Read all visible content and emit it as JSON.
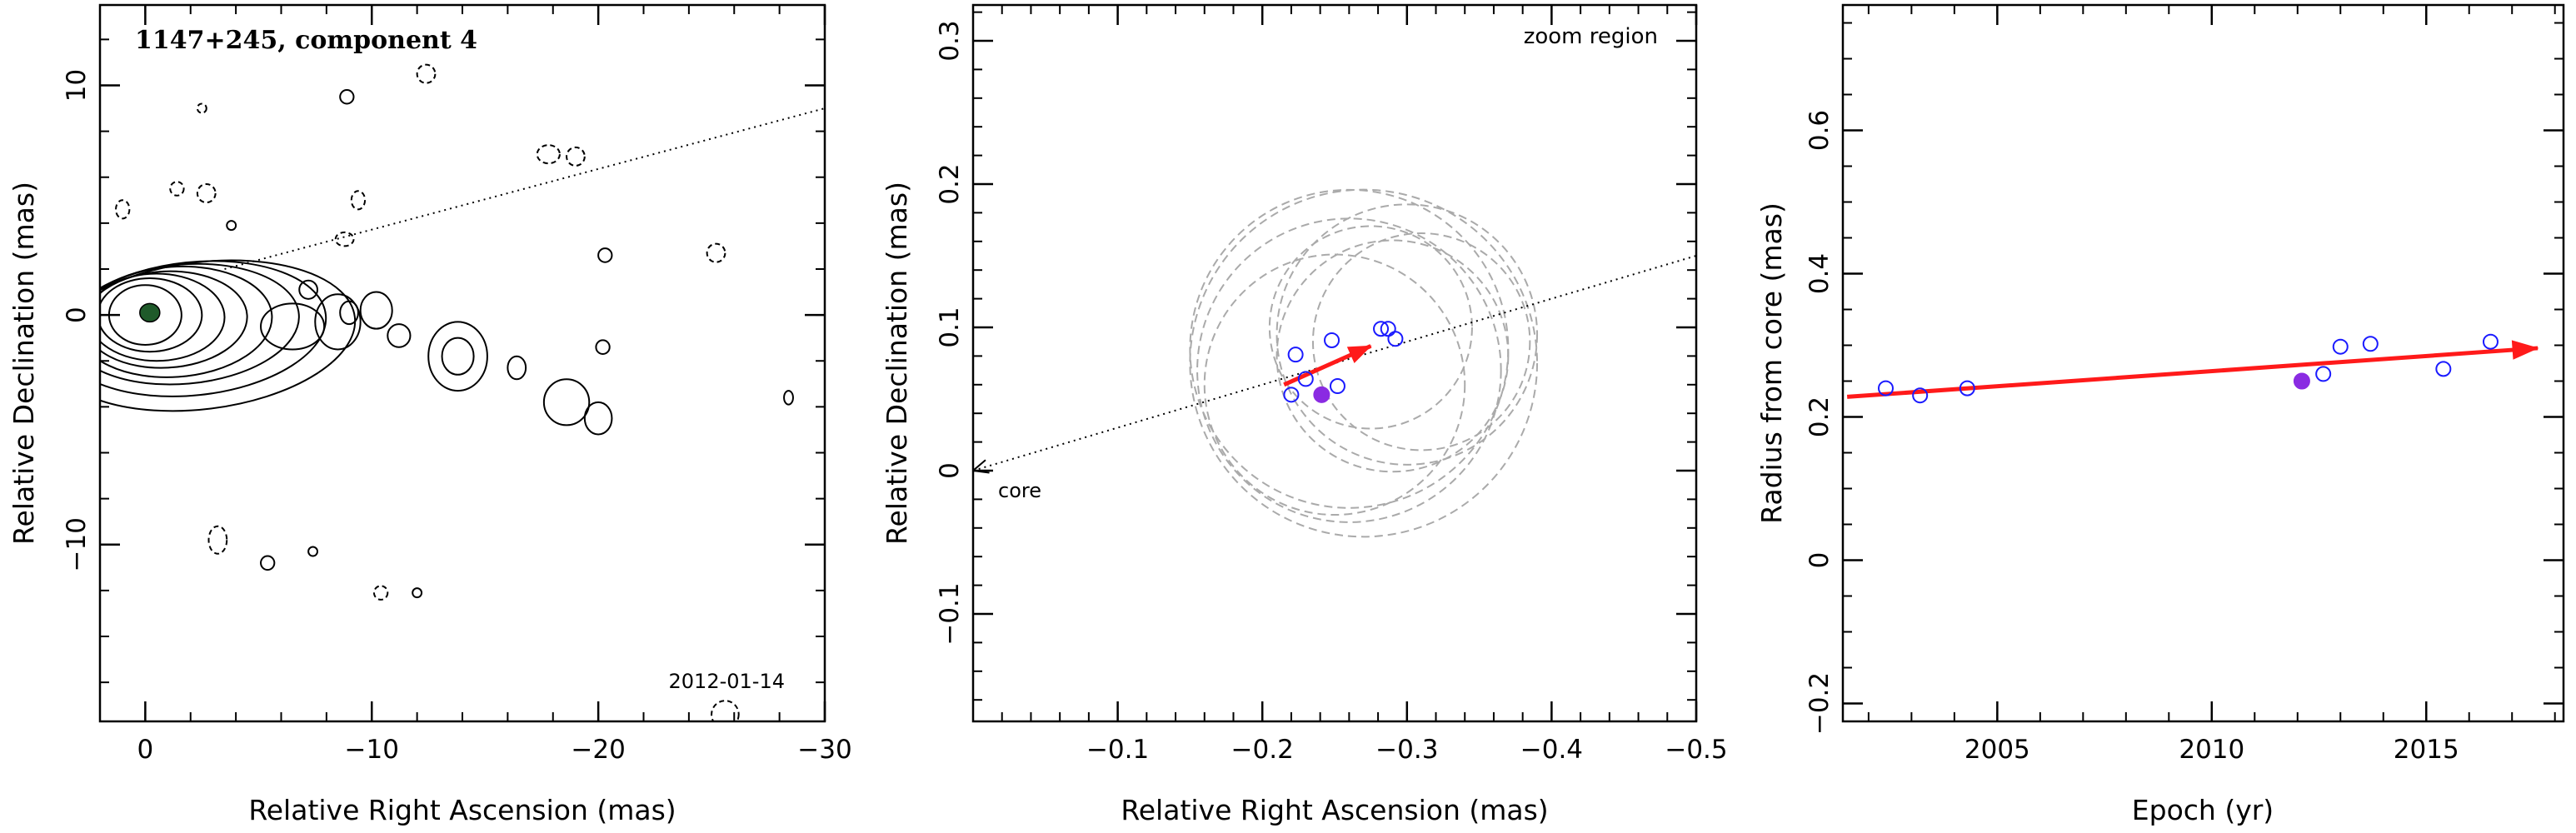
{
  "chart_data": [
    {
      "type": "contour",
      "title": "1147+245, component 4",
      "date_label": "2012-01-14",
      "xlabel": "Relative Right Ascension (mas)",
      "ylabel": "Relative Declination (mas)",
      "xlim": [
        2,
        -30
      ],
      "ylim": [
        -17.7,
        13.5
      ],
      "x_ticks": [
        0,
        -10,
        -20,
        -30
      ],
      "y_ticks": [
        10,
        0,
        -10
      ],
      "direction_line": {
        "from": [
          0,
          0
        ],
        "to": [
          -30,
          9.0
        ]
      },
      "core_marker": {
        "x": -0.2,
        "y": 0.1,
        "color": "#1f5a2a"
      },
      "colors": {
        "contour": "#000000",
        "core_fill": "#1f5a2a"
      }
    },
    {
      "type": "scatter",
      "annotation": "zoom region",
      "core_label": "core",
      "xlabel": "Relative Right Ascension (mas)",
      "ylabel": "Relative Declination (mas)",
      "xlim": [
        0.0,
        -0.5
      ],
      "ylim": [
        -0.175,
        0.325
      ],
      "x_ticks": [
        -0.1,
        -0.2,
        -0.3,
        -0.4,
        -0.5
      ],
      "y_ticks": [
        0.3,
        0.2,
        0.1,
        0,
        -0.1
      ],
      "direction_line": {
        "from": [
          0,
          0
        ],
        "to": [
          -0.5,
          0.15
        ]
      },
      "points": [
        {
          "x": -0.22,
          "y": 0.053
        },
        {
          "x": -0.223,
          "y": 0.081
        },
        {
          "x": -0.23,
          "y": 0.064
        },
        {
          "x": -0.248,
          "y": 0.091
        },
        {
          "x": -0.252,
          "y": 0.059
        },
        {
          "x": -0.282,
          "y": 0.099
        },
        {
          "x": -0.287,
          "y": 0.099
        },
        {
          "x": -0.292,
          "y": 0.092
        }
      ],
      "highlight_point": {
        "x": -0.241,
        "y": 0.053
      },
      "circles": [
        {
          "x": -0.26,
          "y": 0.085,
          "r": 0.11
        },
        {
          "x": -0.27,
          "y": 0.075,
          "r": 0.12
        },
        {
          "x": -0.25,
          "y": 0.06,
          "r": 0.09
        },
        {
          "x": -0.29,
          "y": 0.08,
          "r": 0.08
        },
        {
          "x": -0.31,
          "y": 0.09,
          "r": 0.075
        },
        {
          "x": -0.3,
          "y": 0.095,
          "r": 0.09
        },
        {
          "x": -0.26,
          "y": 0.07,
          "r": 0.105
        },
        {
          "x": -0.275,
          "y": 0.1,
          "r": 0.07
        }
      ],
      "vector": {
        "from": [
          -0.215,
          0.06
        ],
        "to": [
          -0.275,
          0.087
        ]
      },
      "colors": {
        "points": "#1a1aff",
        "highlight": "#8a2be2",
        "vector": "#ff1a1a",
        "circles": "#aaaaaa"
      }
    },
    {
      "type": "scatter",
      "xlabel": "Epoch (yr)",
      "ylabel": "Radius from core (mas)",
      "xlim": [
        2001.4,
        2018.2
      ],
      "ylim": [
        -0.225,
        0.775
      ],
      "x_ticks": [
        2005,
        2010,
        2015
      ],
      "y_ticks": [
        0.6,
        0.4,
        0.2,
        0,
        -0.2
      ],
      "points": [
        {
          "x": 2002.4,
          "y": 0.24
        },
        {
          "x": 2003.2,
          "y": 0.23
        },
        {
          "x": 2004.3,
          "y": 0.24
        },
        {
          "x": 2012.6,
          "y": 0.26
        },
        {
          "x": 2013.0,
          "y": 0.298
        },
        {
          "x": 2013.7,
          "y": 0.302
        },
        {
          "x": 2015.4,
          "y": 0.267
        },
        {
          "x": 2016.5,
          "y": 0.305
        }
      ],
      "highlight_point": {
        "x": 2012.1,
        "y": 0.25
      },
      "trend_line": {
        "from": [
          2001.5,
          0.228
        ],
        "to": [
          2017.6,
          0.296
        ]
      },
      "colors": {
        "points": "#1a1aff",
        "highlight": "#8a2be2",
        "trend": "#ff1a1a"
      }
    }
  ]
}
